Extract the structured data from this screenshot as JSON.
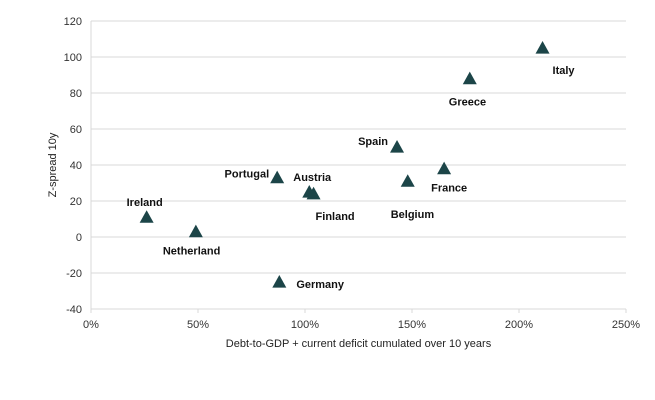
{
  "chart_data": {
    "type": "scatter",
    "xlabel": "Debt-to-GDP + current deficit cumulated over 10 years",
    "ylabel": "Z-spread 10y",
    "xlim": [
      0,
      2.5
    ],
    "ylim": [
      -40,
      120
    ],
    "x_ticks": [
      0,
      0.5,
      1.0,
      1.5,
      2.0,
      2.5
    ],
    "x_tick_labels": [
      "0%",
      "50%",
      "100%",
      "150%",
      "200%",
      "250%"
    ],
    "y_ticks": [
      -40,
      -20,
      0,
      20,
      40,
      60,
      80,
      100,
      120
    ],
    "y_tick_labels": [
      "-40",
      "-20",
      "0",
      "20",
      "40",
      "60",
      "80",
      "100",
      "120"
    ],
    "grid": "horizontal",
    "marker": "triangle",
    "marker_color": "#1c4548",
    "points": [
      {
        "label": "Ireland",
        "x": 0.26,
        "y": 11
      },
      {
        "label": "Netherland",
        "x": 0.49,
        "y": 3
      },
      {
        "label": "Portugal",
        "x": 0.87,
        "y": 33
      },
      {
        "label": "Germany",
        "x": 0.88,
        "y": -25
      },
      {
        "label": "Austria",
        "x": 1.02,
        "y": 25
      },
      {
        "label": "Finland",
        "x": 1.04,
        "y": 24
      },
      {
        "label": "Spain",
        "x": 1.43,
        "y": 50
      },
      {
        "label": "Belgium",
        "x": 1.48,
        "y": 31
      },
      {
        "label": "France",
        "x": 1.65,
        "y": 38
      },
      {
        "label": "Greece",
        "x": 1.77,
        "y": 88
      },
      {
        "label": "Italy",
        "x": 2.11,
        "y": 105
      }
    ]
  }
}
